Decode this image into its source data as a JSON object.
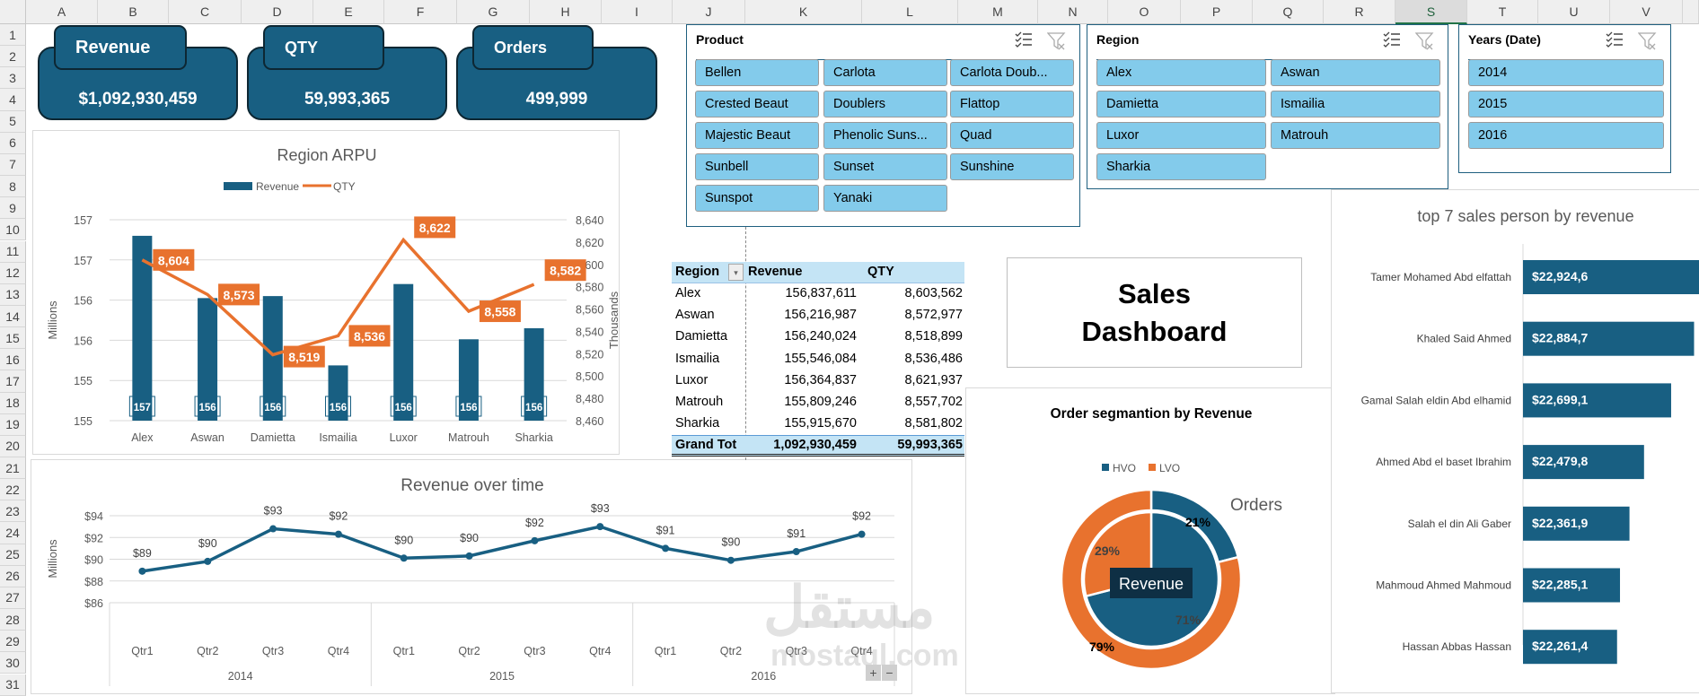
{
  "sheet": {
    "columns": [
      "A",
      "B",
      "C",
      "D",
      "E",
      "F",
      "G",
      "H",
      "I",
      "J",
      "K",
      "L",
      "M",
      "N",
      "O",
      "P",
      "Q",
      "R",
      "S",
      "T",
      "U",
      "V"
    ],
    "selected_column": "S",
    "rows": [
      "1",
      "2",
      "3",
      "4",
      "5",
      "6",
      "7",
      "8",
      "9",
      "10",
      "11",
      "12",
      "13",
      "14",
      "15",
      "16",
      "17",
      "18",
      "19",
      "20",
      "21",
      "22",
      "23",
      "24",
      "25",
      "26",
      "27",
      "28",
      "29",
      "30",
      "31"
    ]
  },
  "kpis": [
    {
      "label": "Revenue",
      "value": "$1,092,930,459"
    },
    {
      "label": "QTY",
      "value": "59,993,365"
    },
    {
      "label": "Orders",
      "value": "499,999"
    }
  ],
  "colors": {
    "primary": "#185F82",
    "accent": "#E8722E",
    "slicer_button": "#83CBEB",
    "pivot_header": "#C4E4F5"
  },
  "slicers": [
    {
      "title": "Product",
      "items": [
        "Bellen",
        "Carlota",
        "Carlota Doub...",
        "Crested Beaut",
        "Doublers",
        "Flattop",
        "Majestic Beaut",
        "Phenolic Suns...",
        "Quad",
        "Sunbell",
        "Sunset",
        "Sunshine",
        "Sunspot",
        "Yanaki"
      ],
      "icons": [
        "multi-select-icon",
        "clear-filter-icon"
      ]
    },
    {
      "title": "Region",
      "items": [
        "Alex",
        "Aswan",
        "Damietta",
        "Ismailia",
        "Luxor",
        "Matrouh",
        "Sharkia"
      ],
      "icons": [
        "multi-select-icon",
        "clear-filter-icon"
      ]
    },
    {
      "title": "Years (Date)",
      "items": [
        "2014",
        "2015",
        "2016"
      ],
      "icons": [
        "multi-select-icon",
        "clear-filter-icon"
      ]
    }
  ],
  "pivot": {
    "headers": [
      "Region",
      "Revenue",
      "QTY"
    ],
    "rows": [
      [
        "Alex",
        "156,837,611",
        "8,603,562"
      ],
      [
        "Aswan",
        "156,216,987",
        "8,572,977"
      ],
      [
        "Damietta",
        "156,240,024",
        "8,518,899"
      ],
      [
        "Ismailia",
        "155,546,084",
        "8,536,486"
      ],
      [
        "Luxor",
        "156,364,837",
        "8,621,937"
      ],
      [
        "Matrouh",
        "155,809,246",
        "8,557,702"
      ],
      [
        "Sharkia",
        "155,915,670",
        "8,581,802"
      ]
    ],
    "total": [
      "Grand Tot",
      "1,092,930,459",
      "59,993,365"
    ]
  },
  "dashboard_title": {
    "line1": "Sales",
    "line2": "Dashboard"
  },
  "watermark": {
    "arabic": "مستقل",
    "latin": "mostaql.com"
  },
  "zoom_controls": {
    "plus": "+",
    "minus": "−"
  },
  "chart_data": [
    {
      "type": "bar+line",
      "title": "Region ARPU",
      "categories": [
        "Alex",
        "Aswan",
        "Damietta",
        "Ismailia",
        "Luxor",
        "Matrouh",
        "Sharkia"
      ],
      "series": [
        {
          "name": "Revenue",
          "type": "bar",
          "axis": "left",
          "values": [
            156.84,
            156.22,
            156.24,
            155.55,
            156.36,
            155.81,
            155.92
          ],
          "labels": [
            "157",
            "156",
            "156",
            "156",
            "156",
            "156",
            "156"
          ]
        },
        {
          "name": "QTY",
          "type": "line",
          "axis": "right",
          "values": [
            8604,
            8573,
            8519,
            8536,
            8622,
            8558,
            8582
          ],
          "labels": [
            "8,604",
            "8,573",
            "8,519",
            "8,536",
            "8,622",
            "8,558",
            "8,582"
          ]
        }
      ],
      "ylabel": "Millions",
      "y2label": "Thousands",
      "ylim": [
        155.0,
        157.0
      ],
      "yticks": [
        "157",
        "157",
        "156",
        "156",
        "155",
        "155"
      ],
      "y2lim": [
        8460,
        8640
      ],
      "y2ticks": [
        "8,640",
        "8,620",
        "8,600",
        "8,580",
        "8,560",
        "8,540",
        "8,520",
        "8,500",
        "8,480",
        "8,460"
      ],
      "legend": "top",
      "grid": true
    },
    {
      "type": "line",
      "title": "Revenue over time",
      "x": [
        "Qtr1",
        "Qtr2",
        "Qtr3",
        "Qtr4",
        "Qtr1",
        "Qtr2",
        "Qtr3",
        "Qtr4",
        "Qtr1",
        "Qtr2",
        "Qtr3",
        "Qtr4"
      ],
      "groups": [
        "2014",
        "2015",
        "2016"
      ],
      "values": [
        88.9,
        89.8,
        92.8,
        92.3,
        90.1,
        90.3,
        91.7,
        93.0,
        91.0,
        89.9,
        90.7,
        92.3
      ],
      "labels": [
        "$89",
        "$90",
        "$93",
        "$92",
        "$90",
        "$90",
        "$92",
        "$93",
        "$91",
        "$90",
        "$91",
        "$92"
      ],
      "ylabel": "Millions",
      "ylim": [
        86,
        94
      ],
      "yticks": [
        "$94",
        "$92",
        "$90",
        "$88",
        "$86"
      ],
      "grid": true
    },
    {
      "type": "pie",
      "title": "Order segmantion by Revenue",
      "legend": [
        "HVO",
        "LVO"
      ],
      "outer": {
        "name": "Orders",
        "values": [
          21,
          79
        ],
        "labels": [
          "21%",
          "79%"
        ]
      },
      "inner": {
        "name": "Revenue",
        "values": [
          71,
          29
        ],
        "labels": [
          "71%",
          "29%"
        ]
      },
      "legend_position": "top"
    },
    {
      "type": "bar",
      "orientation": "horizontal",
      "title": "top 7 sales person by revenue",
      "categories": [
        "Tamer Mohamed Abd elfattah",
        "Khaled Said Ahmed",
        "Gamal Salah eldin Abd elhamid",
        "Ahmed Abd el baset Ibrahim",
        "Salah el din Ali Gaber",
        "Mahmoud Ahmed Mahmoud",
        "Hassan Abbas Hassan"
      ],
      "values": [
        22924600,
        22884700,
        22699100,
        22479800,
        22361900,
        22285100,
        22261400
      ],
      "labels": [
        "$22,924,6",
        "$22,884,7",
        "$22,699,1",
        "$22,479,8",
        "$22,361,9",
        "$22,285,1",
        "$22,261,4"
      ]
    }
  ]
}
